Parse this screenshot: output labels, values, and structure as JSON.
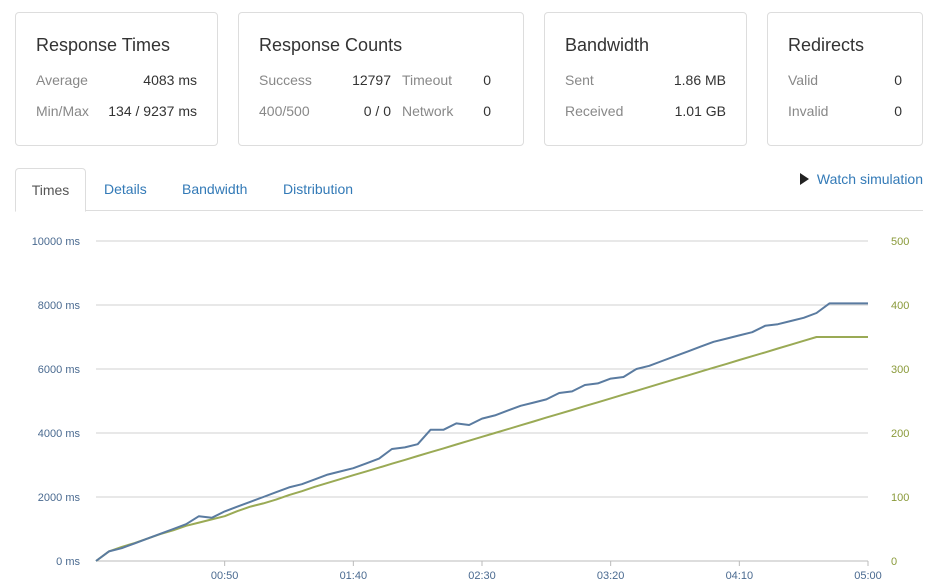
{
  "summary": {
    "response_times": {
      "title": "Response Times",
      "average_label": "Average",
      "average_value": "4083 ms",
      "minmax_label": "Min/Max",
      "minmax_value": "134 / 9237 ms"
    },
    "response_counts": {
      "title": "Response Counts",
      "success_label": "Success",
      "success_value": "12797",
      "timeout_label": "Timeout",
      "timeout_value": "0",
      "errors_label": "400/500",
      "errors_value": "0 / 0",
      "network_label": "Network",
      "network_value": "0"
    },
    "bandwidth": {
      "title": "Bandwidth",
      "sent_label": "Sent",
      "sent_value": "1.86 MB",
      "received_label": "Received",
      "received_value": "1.01 GB"
    },
    "redirects": {
      "title": "Redirects",
      "valid_label": "Valid",
      "valid_value": "0",
      "invalid_label": "Invalid",
      "invalid_value": "0"
    }
  },
  "tabs": [
    {
      "label": "Times",
      "active": true
    },
    {
      "label": "Details",
      "active": false
    },
    {
      "label": "Bandwidth",
      "active": false
    },
    {
      "label": "Distribution",
      "active": false
    }
  ],
  "watch_simulation": {
    "label": "Watch simulation",
    "icon": "play-icon"
  },
  "chart_data": {
    "type": "line",
    "y_left": {
      "unit": "ms",
      "range": [
        0,
        10000
      ],
      "ticks": [
        "0 ms",
        "2000 ms",
        "4000 ms",
        "6000 ms",
        "8000 ms",
        "10000 ms"
      ]
    },
    "y_right": {
      "range": [
        0,
        500
      ],
      "ticks": [
        "0",
        "100",
        "200",
        "300",
        "400",
        "500"
      ]
    },
    "x_range_seconds": [
      0,
      300
    ],
    "x_ticks": [
      {
        "label": "00:50",
        "t": 50
      },
      {
        "label": "01:40",
        "t": 100
      },
      {
        "label": "02:30",
        "t": 150
      },
      {
        "label": "03:20",
        "t": 200
      },
      {
        "label": "04:10",
        "t": 250
      },
      {
        "label": "05:00",
        "t": 300
      }
    ],
    "grid": true,
    "colors": {
      "response_time": "#5a7ba0",
      "clients": "#9aaa55"
    },
    "series": [
      {
        "axis": "left",
        "x": [
          0,
          5,
          10,
          15,
          20,
          25,
          30,
          35,
          40,
          45,
          50,
          55,
          60,
          65,
          70,
          75,
          80,
          85,
          90,
          95,
          100,
          105,
          110,
          115,
          120,
          125,
          130,
          135,
          140,
          145,
          150,
          155,
          160,
          165,
          170,
          175,
          180,
          185,
          190,
          195,
          200,
          205,
          210,
          215,
          220,
          225,
          230,
          235,
          240,
          245,
          250,
          255,
          260,
          265,
          270,
          275,
          280,
          285,
          290,
          295,
          300
        ],
        "values": [
          0,
          300,
          400,
          550,
          700,
          850,
          1000,
          1150,
          1400,
          1350,
          1550,
          1700,
          1850,
          2000,
          2150,
          2300,
          2400,
          2550,
          2700,
          2800,
          2900,
          3050,
          3200,
          3500,
          3550,
          3650,
          4100,
          4100,
          4300,
          4250,
          4450,
          4550,
          4700,
          4850,
          4950,
          5050,
          5250,
          5300,
          5500,
          5550,
          5700,
          5750,
          6000,
          6100,
          6250,
          6400,
          6550,
          6700,
          6850,
          6950,
          7050,
          7150,
          7350,
          7400,
          7500,
          7600,
          7750,
          8050,
          8050,
          8050,
          8050
        ]
      },
      {
        "axis": "right",
        "x": [
          0,
          5,
          10,
          15,
          20,
          25,
          30,
          35,
          40,
          45,
          50,
          55,
          60,
          65,
          70,
          75,
          80,
          85,
          90,
          95,
          100,
          105,
          110,
          115,
          120,
          125,
          130,
          135,
          140,
          145,
          150,
          155,
          160,
          165,
          170,
          175,
          180,
          185,
          190,
          195,
          200,
          205,
          210,
          215,
          220,
          225,
          230,
          235,
          240,
          245,
          250,
          255,
          260,
          265,
          270,
          275,
          280,
          285,
          290,
          295,
          300
        ],
        "values": [
          0,
          15,
          22,
          28,
          35,
          42,
          48,
          55,
          60,
          65,
          70,
          78,
          85,
          90,
          96,
          103,
          109,
          116,
          122,
          128,
          134,
          140,
          146,
          152,
          158,
          164,
          170,
          176,
          182,
          188,
          194,
          200,
          206,
          212,
          218,
          224,
          230,
          236,
          242,
          248,
          254,
          260,
          266,
          272,
          278,
          284,
          290,
          296,
          302,
          308,
          314,
          320,
          326,
          332,
          338,
          344,
          350,
          350,
          350,
          350,
          350
        ]
      }
    ]
  }
}
